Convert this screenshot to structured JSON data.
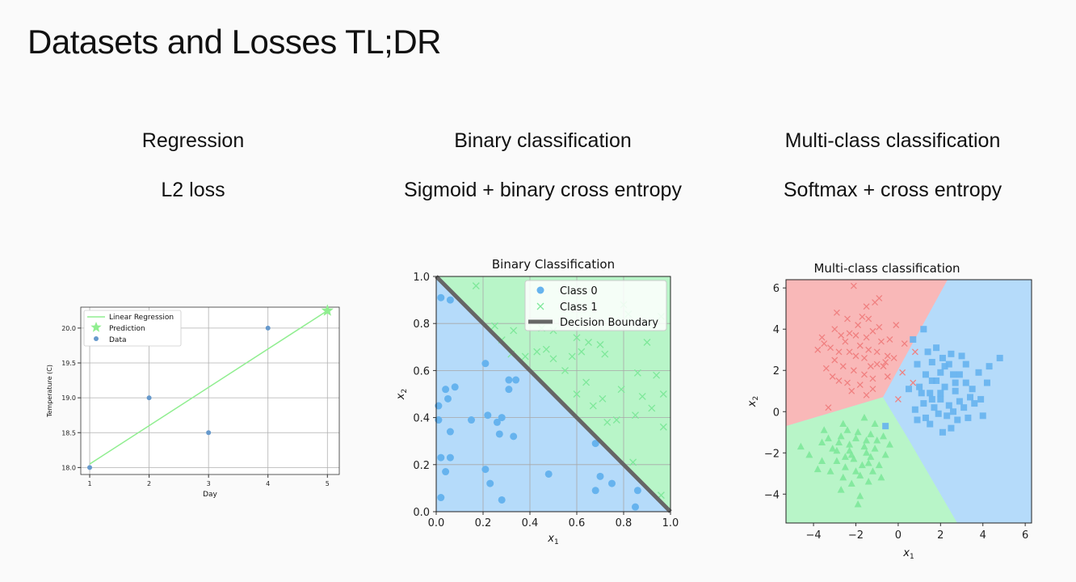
{
  "slide": {
    "title": "Datasets and Losses TL;DR",
    "columns": [
      {
        "heading": "Regression",
        "loss": "L2 loss"
      },
      {
        "heading": "Binary classification",
        "loss": "Sigmoid + binary cross entropy"
      },
      {
        "heading": "Multi-class classification",
        "loss": "Softmax + cross entropy"
      }
    ]
  },
  "colors": {
    "regression_line": "#90ee90",
    "prediction": "#90ee90",
    "data_point": "#6699cc",
    "class0": "#66b3ee",
    "class1": "#7ee89a",
    "region0": "#b5dbfa",
    "region1": "#b8f5c8",
    "region_red": "#f9b8b8",
    "marker_red": "#f08080",
    "boundary": "#666666"
  },
  "chart_data": [
    {
      "type": "line",
      "title": "",
      "xlabel": "Day",
      "ylabel": "Temperature (C)",
      "xlim": [
        0.85,
        5.2
      ],
      "ylim": [
        17.9,
        20.3
      ],
      "xticks": [
        1,
        2,
        3,
        4,
        5
      ],
      "yticks": [
        18.0,
        18.5,
        19.0,
        19.5,
        20.0
      ],
      "grid": true,
      "legend_position": "upper-left",
      "series": [
        {
          "name": "Linear Regression",
          "kind": "line",
          "x": [
            1,
            5
          ],
          "y": [
            18.05,
            20.25
          ]
        },
        {
          "name": "Prediction",
          "kind": "star",
          "x": [
            5
          ],
          "y": [
            20.25
          ]
        },
        {
          "name": "Data",
          "kind": "scatter",
          "x": [
            1,
            2,
            3,
            4
          ],
          "y": [
            18.0,
            19.0,
            18.5,
            20.0
          ]
        }
      ]
    },
    {
      "type": "scatter",
      "title": "Binary Classification",
      "xlabel": "x1",
      "ylabel": "x2",
      "xlim": [
        0,
        1
      ],
      "ylim": [
        0,
        1
      ],
      "xticks": [
        0.0,
        0.2,
        0.4,
        0.6,
        0.8,
        1.0
      ],
      "yticks": [
        0.0,
        0.2,
        0.4,
        0.6,
        0.8,
        1.0
      ],
      "grid": true,
      "legend_position": "upper-right",
      "boundary": {
        "name": "Decision Boundary",
        "x": [
          0,
          1
        ],
        "y": [
          1,
          0
        ]
      },
      "series": [
        {
          "name": "Class 0",
          "marker": "circle",
          "points": [
            [
              0.02,
              0.91
            ],
            [
              0.06,
              0.9
            ],
            [
              0.04,
              0.52
            ],
            [
              0.08,
              0.53
            ],
            [
              0.01,
              0.45
            ],
            [
              0.05,
              0.48
            ],
            [
              0.01,
              0.39
            ],
            [
              0.06,
              0.34
            ],
            [
              0.15,
              0.39
            ],
            [
              0.02,
              0.23
            ],
            [
              0.06,
              0.23
            ],
            [
              0.04,
              0.17
            ],
            [
              0.02,
              0.06
            ],
            [
              0.21,
              0.63
            ],
            [
              0.22,
              0.41
            ],
            [
              0.26,
              0.38
            ],
            [
              0.28,
              0.4
            ],
            [
              0.31,
              0.56
            ],
            [
              0.34,
              0.56
            ],
            [
              0.31,
              0.52
            ],
            [
              0.27,
              0.33
            ],
            [
              0.33,
              0.32
            ],
            [
              0.21,
              0.18
            ],
            [
              0.23,
              0.12
            ],
            [
              0.28,
              0.05
            ],
            [
              0.48,
              0.16
            ],
            [
              0.68,
              0.29
            ],
            [
              0.7,
              0.15
            ],
            [
              0.75,
              0.12
            ],
            [
              0.68,
              0.09
            ],
            [
              0.86,
              0.09
            ],
            [
              0.85,
              0.02
            ]
          ]
        },
        {
          "name": "Class 1",
          "marker": "x",
          "points": [
            [
              0.17,
              0.96
            ],
            [
              0.25,
              0.79
            ],
            [
              0.28,
              0.73
            ],
            [
              0.33,
              0.77
            ],
            [
              0.32,
              0.67
            ],
            [
              0.38,
              0.66
            ],
            [
              0.43,
              0.68
            ],
            [
              0.45,
              0.78
            ],
            [
              0.47,
              0.69
            ],
            [
              0.5,
              0.77
            ],
            [
              0.5,
              0.65
            ],
            [
              0.55,
              0.6
            ],
            [
              0.58,
              0.66
            ],
            [
              0.6,
              0.74
            ],
            [
              0.62,
              0.68
            ],
            [
              0.65,
              0.72
            ],
            [
              0.7,
              0.71
            ],
            [
              0.72,
              0.67
            ],
            [
              0.64,
              0.55
            ],
            [
              0.6,
              0.5
            ],
            [
              0.67,
              0.45
            ],
            [
              0.71,
              0.48
            ],
            [
              0.79,
              0.52
            ],
            [
              0.88,
              0.49
            ],
            [
              0.86,
              0.59
            ],
            [
              0.94,
              0.58
            ],
            [
              0.9,
              0.72
            ],
            [
              0.96,
              0.83
            ],
            [
              0.8,
              0.88
            ],
            [
              0.85,
              0.41
            ],
            [
              0.92,
              0.44
            ],
            [
              0.97,
              0.36
            ],
            [
              0.77,
              0.39
            ],
            [
              0.73,
              0.38
            ],
            [
              0.82,
              0.84
            ],
            [
              0.97,
              0.5
            ],
            [
              0.84,
              0.21
            ],
            [
              0.96,
              0.07
            ]
          ]
        }
      ]
    },
    {
      "type": "scatter",
      "title": "Multi-class classification",
      "xlabel": "x1",
      "ylabel": "x2",
      "xlim": [
        -5.3,
        6.3
      ],
      "ylim": [
        -5.4,
        6.4
      ],
      "xticks": [
        -4,
        -2,
        0,
        2,
        4,
        6
      ],
      "yticks": [
        -4,
        -2,
        0,
        2,
        4,
        6
      ],
      "grid": false,
      "series": [
        {
          "name": "",
          "marker": "x",
          "color": "#f08080",
          "points": [
            [
              -3.8,
              3.0
            ],
            [
              -3.5,
              3.3
            ],
            [
              -3.2,
              3.1
            ],
            [
              -3.0,
              2.5
            ],
            [
              -2.8,
              2.9
            ],
            [
              -2.5,
              3.4
            ],
            [
              -2.3,
              3.8
            ],
            [
              -2.0,
              2.7
            ],
            [
              -1.8,
              3.2
            ],
            [
              -1.5,
              3.6
            ],
            [
              -1.2,
              3.9
            ],
            [
              -1.0,
              2.9
            ],
            [
              -0.8,
              3.4
            ],
            [
              -0.5,
              2.7
            ],
            [
              -1.3,
              2.2
            ],
            [
              -1.6,
              1.8
            ],
            [
              -2.1,
              2.0
            ],
            [
              -2.6,
              2.2
            ],
            [
              -3.1,
              1.7
            ],
            [
              -1.9,
              4.2
            ],
            [
              -2.4,
              4.5
            ],
            [
              -1.4,
              4.5
            ],
            [
              -0.7,
              2.2
            ],
            [
              -1.5,
              5.1
            ],
            [
              -1.1,
              5.3
            ],
            [
              -2.9,
              4.8
            ],
            [
              -1.8,
              1.3
            ],
            [
              -2.4,
              1.4
            ],
            [
              -1.2,
              1.6
            ],
            [
              0.8,
              2.9
            ],
            [
              0.2,
              1.9
            ],
            [
              0.7,
              1.4
            ],
            [
              -0.5,
              1.7
            ],
            [
              -0.1,
              4.2
            ],
            [
              -3.4,
              2.1
            ],
            [
              -2.7,
              3.7
            ],
            [
              -2.0,
              3.7
            ],
            [
              -0.9,
              4.1
            ],
            [
              -3.6,
              3.6
            ],
            [
              -0.6,
              2.4
            ],
            [
              -2.8,
              1.5
            ],
            [
              -1.5,
              0.8
            ],
            [
              -3.3,
              0.2
            ],
            [
              -2.1,
              6.1
            ],
            [
              -0.9,
              5.5
            ],
            [
              -0.4,
              3.5
            ],
            [
              0.3,
              3.3
            ],
            [
              -2.2,
              1.0
            ],
            [
              -1.6,
              2.6
            ],
            [
              -1.0,
              2.3
            ],
            [
              -3.0,
              4.0
            ],
            [
              -2.3,
              2.9
            ],
            [
              -1.7,
              4.6
            ],
            [
              -0.2,
              2.6
            ],
            [
              0.0,
              0.6
            ],
            [
              -1.2,
              1.1
            ],
            [
              -1.4,
              3.0
            ]
          ]
        },
        {
          "name": "",
          "marker": "square",
          "color": "#66b3ee",
          "points": [
            [
              0.7,
              3.5
            ],
            [
              1.2,
              4.0
            ],
            [
              0.9,
              2.3
            ],
            [
              1.6,
              2.4
            ],
            [
              2.1,
              2.6
            ],
            [
              2.5,
              2.8
            ],
            [
              3.0,
              2.7
            ],
            [
              1.3,
              1.8
            ],
            [
              1.8,
              1.5
            ],
            [
              2.2,
              1.2
            ],
            [
              2.7,
              1.0
            ],
            [
              3.2,
              1.4
            ],
            [
              3.5,
              1.1
            ],
            [
              1.0,
              1.2
            ],
            [
              1.5,
              0.9
            ],
            [
              2.0,
              0.6
            ],
            [
              2.4,
              0.3
            ],
            [
              2.9,
              0.5
            ],
            [
              3.4,
              0.7
            ],
            [
              1.7,
              0.2
            ],
            [
              2.3,
              -0.2
            ],
            [
              2.8,
              -0.4
            ],
            [
              1.2,
              0.4
            ],
            [
              1.9,
              -0.1
            ],
            [
              0.9,
              -0.4
            ],
            [
              1.5,
              -0.6
            ],
            [
              2.1,
              -1.0
            ],
            [
              3.8,
              1.9
            ],
            [
              4.3,
              2.2
            ],
            [
              4.8,
              2.6
            ],
            [
              3.9,
              0.6
            ],
            [
              4.0,
              -0.2
            ],
            [
              2.6,
              1.8
            ],
            [
              2.0,
              1.9
            ],
            [
              1.4,
              2.9
            ],
            [
              3.2,
              2.3
            ],
            [
              0.5,
              1.1
            ],
            [
              -0.6,
              -0.7
            ],
            [
              1.8,
              3.1
            ],
            [
              2.6,
              0.0
            ],
            [
              3.1,
              0.2
            ],
            [
              3.6,
              0.4
            ],
            [
              1.1,
              0.9
            ],
            [
              1.6,
              1.5
            ],
            [
              2.2,
              2.2
            ],
            [
              2.9,
              1.8
            ],
            [
              2.5,
              -0.8
            ],
            [
              1.3,
              -0.3
            ],
            [
              0.8,
              0.1
            ],
            [
              4.2,
              1.4
            ],
            [
              3.3,
              -0.3
            ],
            [
              2.0,
              0.9
            ],
            [
              2.7,
              1.4
            ],
            [
              1.6,
              0.6
            ],
            [
              2.4,
              2.3
            ]
          ]
        },
        {
          "name": "",
          "marker": "triangle",
          "color": "#7ee89a",
          "points": [
            [
              -3.6,
              -1.5
            ],
            [
              -3.1,
              -1.8
            ],
            [
              -2.7,
              -1.2
            ],
            [
              -2.3,
              -1.6
            ],
            [
              -1.9,
              -1.0
            ],
            [
              -1.5,
              -1.4
            ],
            [
              -1.1,
              -1.8
            ],
            [
              -0.7,
              -1.2
            ],
            [
              -2.9,
              -2.4
            ],
            [
              -2.5,
              -2.7
            ],
            [
              -2.1,
              -2.3
            ],
            [
              -1.7,
              -2.6
            ],
            [
              -1.3,
              -2.2
            ],
            [
              -0.9,
              -2.6
            ],
            [
              -2.6,
              -3.2
            ],
            [
              -2.2,
              -3.5
            ],
            [
              -1.8,
              -3.1
            ],
            [
              -1.4,
              -3.4
            ],
            [
              -3.2,
              -2.9
            ],
            [
              -3.5,
              -0.9
            ],
            [
              -2.6,
              -0.6
            ],
            [
              -1.6,
              -0.3
            ],
            [
              -1.1,
              -0.6
            ],
            [
              -4.2,
              -2.1
            ],
            [
              -3.8,
              -2.8
            ],
            [
              -1.9,
              -4.5
            ],
            [
              -1.8,
              -4.1
            ],
            [
              -2.3,
              -1.9
            ],
            [
              -1.5,
              -2.0
            ],
            [
              -0.6,
              -2.1
            ],
            [
              -0.4,
              -1.6
            ],
            [
              -2.8,
              -1.5
            ],
            [
              -3.3,
              -1.3
            ],
            [
              -2.0,
              -2.9
            ],
            [
              -1.2,
              -2.9
            ],
            [
              -2.4,
              -0.9
            ],
            [
              -1.3,
              -1.1
            ],
            [
              -4.6,
              -1.7
            ],
            [
              -0.8,
              -3.2
            ],
            [
              -2.7,
              -3.8
            ],
            [
              -2.0,
              -1.3
            ],
            [
              -1.6,
              -1.7
            ],
            [
              -2.9,
              -1.9
            ],
            [
              -1.0,
              -1.4
            ],
            [
              -3.6,
              -2.4
            ],
            [
              -2.2,
              -2.1
            ],
            [
              -1.4,
              -2.5
            ],
            [
              -2.5,
              -2.2
            ]
          ]
        }
      ]
    }
  ]
}
